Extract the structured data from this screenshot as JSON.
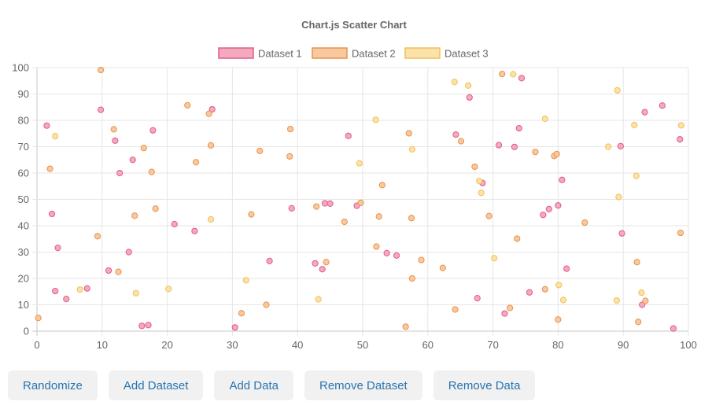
{
  "chart_data": {
    "type": "scatter",
    "title": "Chart.js Scatter Chart",
    "xlim": [
      0,
      100
    ],
    "ylim": [
      0,
      100
    ],
    "x_ticks": [
      "0",
      "10",
      "20",
      "30",
      "40",
      "50",
      "60",
      "70",
      "80",
      "90",
      "100"
    ],
    "y_ticks": [
      "0",
      "10",
      "20",
      "30",
      "40",
      "50",
      "60",
      "70",
      "80",
      "90",
      "100"
    ],
    "grid": true,
    "legend_position": "top",
    "series": [
      {
        "name": "Dataset 1",
        "color": "#e05c86",
        "fill": "#f5a9bf",
        "points": [
          [
            1.5,
            78
          ],
          [
            2.3,
            44.5
          ],
          [
            2.8,
            15.2
          ],
          [
            3.2,
            31.6
          ],
          [
            4.5,
            12.2
          ],
          [
            7.7,
            16.2
          ],
          [
            9.8,
            84
          ],
          [
            11,
            23
          ],
          [
            12,
            72.3
          ],
          [
            12.7,
            60
          ],
          [
            14.1,
            30
          ],
          [
            14.7,
            65
          ],
          [
            16.1,
            2
          ],
          [
            17.1,
            2.3
          ],
          [
            17.8,
            76.2
          ],
          [
            21.1,
            40.6
          ],
          [
            24.2,
            38
          ],
          [
            26.9,
            84.2
          ],
          [
            30.4,
            1.4
          ],
          [
            35.7,
            26.6
          ],
          [
            39.1,
            46.6
          ],
          [
            42.7,
            25.7
          ],
          [
            43.8,
            23.5
          ],
          [
            44.2,
            48.5
          ],
          [
            45,
            48.4
          ],
          [
            47.8,
            74.1
          ],
          [
            49.1,
            47.6
          ],
          [
            53.7,
            29.6
          ],
          [
            55.2,
            28.7
          ],
          [
            64.3,
            74.6
          ],
          [
            66.4,
            88.7
          ],
          [
            67.6,
            12.5
          ],
          [
            68.4,
            56.2
          ],
          [
            70.9,
            70.6
          ],
          [
            71.8,
            6.7
          ],
          [
            73.3,
            69.9
          ],
          [
            74,
            77
          ],
          [
            74.4,
            96
          ],
          [
            75.6,
            14.7
          ],
          [
            77.7,
            44.1
          ],
          [
            78.6,
            46.3
          ],
          [
            80,
            47.7
          ],
          [
            80.6,
            57.4
          ],
          [
            81.3,
            23.7
          ],
          [
            89.6,
            70.2
          ],
          [
            89.8,
            37.1
          ],
          [
            92.9,
            10
          ],
          [
            93.3,
            83.1
          ],
          [
            96,
            85.6
          ],
          [
            97.7,
            1
          ],
          [
            98.7,
            72.8
          ]
        ]
      },
      {
        "name": "Dataset 2",
        "color": "#e8924a",
        "fill": "#f8c9a0",
        "points": [
          [
            0.2,
            5
          ],
          [
            2,
            61.6
          ],
          [
            9.3,
            36
          ],
          [
            9.8,
            99.1
          ],
          [
            11.8,
            76.6
          ],
          [
            12.5,
            22.5
          ],
          [
            15,
            43.8
          ],
          [
            16.4,
            69.5
          ],
          [
            17.6,
            60.4
          ],
          [
            18.2,
            46.5
          ],
          [
            23.1,
            85.7
          ],
          [
            24.4,
            64.1
          ],
          [
            26.4,
            82.5
          ],
          [
            26.7,
            70.5
          ],
          [
            31.4,
            6.8
          ],
          [
            32.9,
            44.3
          ],
          [
            34.2,
            68.4
          ],
          [
            35.2,
            10
          ],
          [
            38.8,
            66.3
          ],
          [
            38.9,
            76.7
          ],
          [
            42.9,
            47.3
          ],
          [
            44.4,
            26.2
          ],
          [
            47.2,
            41.5
          ],
          [
            49.7,
            48.7
          ],
          [
            52.1,
            32.1
          ],
          [
            52.5,
            43.5
          ],
          [
            53,
            55.4
          ],
          [
            56.6,
            1.7
          ],
          [
            57.1,
            75.1
          ],
          [
            57.5,
            42.9
          ],
          [
            57.6,
            20
          ],
          [
            59,
            27
          ],
          [
            62.3,
            24
          ],
          [
            64.2,
            8.2
          ],
          [
            65.1,
            72.1
          ],
          [
            67.2,
            62.4
          ],
          [
            69.4,
            43.7
          ],
          [
            71.4,
            97.6
          ],
          [
            72.6,
            8.8
          ],
          [
            73.7,
            35.1
          ],
          [
            76.5,
            68
          ],
          [
            78,
            15.9
          ],
          [
            79.4,
            66.5
          ],
          [
            79.8,
            67.2
          ],
          [
            80,
            4.4
          ],
          [
            84.1,
            41.2
          ],
          [
            92.1,
            26.2
          ],
          [
            92.3,
            3.5
          ],
          [
            93.4,
            11.5
          ],
          [
            98.8,
            37.3
          ]
        ]
      },
      {
        "name": "Dataset 3",
        "color": "#f1c057",
        "fill": "#fbe2ab",
        "points": [
          [
            2.8,
            74
          ],
          [
            6.6,
            15.8
          ],
          [
            15.2,
            14.4
          ],
          [
            20.2,
            16
          ],
          [
            26.7,
            42.4
          ],
          [
            32.1,
            19.3
          ],
          [
            43.2,
            12.1
          ],
          [
            49.5,
            63.7
          ],
          [
            52,
            80.2
          ],
          [
            57.6,
            69
          ],
          [
            64.1,
            94.6
          ],
          [
            66.2,
            93.2
          ],
          [
            67.9,
            57
          ],
          [
            68.2,
            52.5
          ],
          [
            70.2,
            27.7
          ],
          [
            73.1,
            97.5
          ],
          [
            78,
            80.6
          ],
          [
            80.1,
            17.5
          ],
          [
            80.8,
            11.8
          ],
          [
            87.7,
            70
          ],
          [
            89,
            11.6
          ],
          [
            89.1,
            91.4
          ],
          [
            89.3,
            50.9
          ],
          [
            91.7,
            78.2
          ],
          [
            92,
            58.9
          ],
          [
            92.8,
            14.6
          ],
          [
            98.9,
            78.1
          ]
        ]
      }
    ]
  },
  "buttons": {
    "randomize": "Randomize",
    "add_dataset": "Add Dataset",
    "add_data": "Add Data",
    "remove_dataset": "Remove Dataset",
    "remove_data": "Remove Data"
  }
}
